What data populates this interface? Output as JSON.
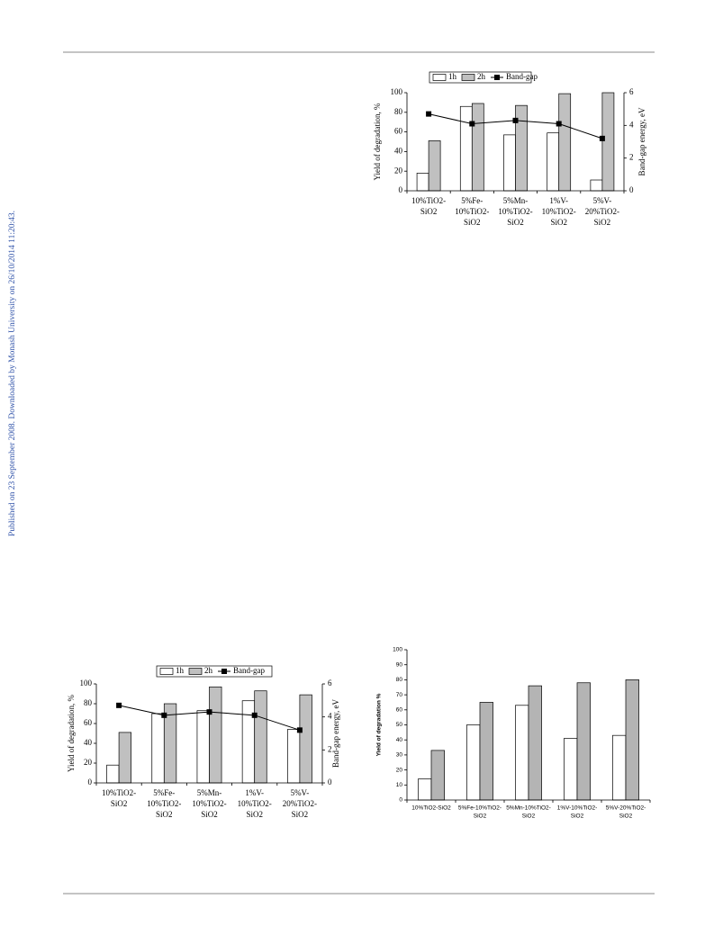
{
  "sidebar_note": "Published on 23 September 2008. Downloaded by Monash University on 26/10/2014 11:20:43.",
  "chart_data": [
    {
      "type": "bar",
      "ylabel": "Yield of degradation, %",
      "y2label": "Band-gap energy, eV",
      "categories": [
        [
          "10%TiO2-",
          "SiO2"
        ],
        [
          "5%Fe-",
          "10%TiO2-",
          "SiO2"
        ],
        [
          "5%Mn-",
          "10%TiO2-",
          "SiO2"
        ],
        [
          "1%V-",
          "10%TiO2-",
          "SiO2"
        ],
        [
          "5%V-",
          "20%TiO2-",
          "SiO2"
        ]
      ],
      "series": [
        {
          "name": "1h",
          "color": "#ffffff",
          "values": [
            18,
            86,
            57,
            59,
            11
          ]
        },
        {
          "name": "2h",
          "color": "#c0c0c0",
          "values": [
            51,
            89,
            87,
            99,
            100
          ]
        },
        {
          "name": "Band-gap",
          "color": "#000000",
          "type": "line",
          "axis": "y2",
          "values": [
            4.7,
            4.1,
            4.3,
            4.1,
            3.2
          ]
        }
      ],
      "ylim": [
        0,
        100
      ],
      "yticks": [
        0,
        20,
        40,
        60,
        80,
        100
      ],
      "y2lim": [
        0,
        6
      ],
      "y2ticks": [
        0,
        2,
        4,
        6
      ],
      "legend": "top"
    },
    {
      "type": "bar",
      "ylabel": "Yield of degradation, %",
      "y2label": "Band-gap energy, eV",
      "categories": [
        [
          "10%TiO2-",
          "SiO2"
        ],
        [
          "5%Fe-",
          "10%TiO2-",
          "SiO2"
        ],
        [
          "5%Mn-",
          "10%TiO2-",
          "SiO2"
        ],
        [
          "1%V-",
          "10%TiO2-",
          "SiO2"
        ],
        [
          "5%V-",
          "20%TiO2-",
          "SiO2"
        ]
      ],
      "series": [
        {
          "name": "1h",
          "color": "#ffffff",
          "values": [
            18,
            70,
            73,
            83,
            54
          ]
        },
        {
          "name": "2h",
          "color": "#c0c0c0",
          "values": [
            51,
            80,
            97,
            93,
            89
          ]
        },
        {
          "name": "Band-gap",
          "color": "#000000",
          "type": "line",
          "axis": "y2",
          "values": [
            4.7,
            4.1,
            4.3,
            4.1,
            3.2
          ]
        }
      ],
      "ylim": [
        0,
        100
      ],
      "yticks": [
        0,
        20,
        40,
        60,
        80,
        100
      ],
      "y2lim": [
        0,
        6
      ],
      "y2ticks": [
        0,
        2,
        4,
        6
      ],
      "legend": "top"
    },
    {
      "type": "bar",
      "ylabel": "Yield of degradation %",
      "categories": [
        [
          "10%TiO2-SiO2"
        ],
        [
          "5%Fe-10%TiO2-",
          "SiO2"
        ],
        [
          "5%Mn-10%TiO2-",
          "SiO2"
        ],
        [
          "1%V-10%TiO2-",
          "SiO2"
        ],
        [
          "5%V-20%TiO2-",
          "SiO2"
        ]
      ],
      "series": [
        {
          "color": "#ffffff",
          "values": [
            14,
            50,
            63,
            41,
            43
          ]
        },
        {
          "color": "#b4b4b4",
          "values": [
            33,
            65,
            76,
            78,
            80
          ]
        }
      ],
      "ylim": [
        0,
        100
      ],
      "yticks": [
        0,
        10,
        20,
        30,
        40,
        50,
        60,
        70,
        80,
        90,
        100
      ]
    }
  ]
}
